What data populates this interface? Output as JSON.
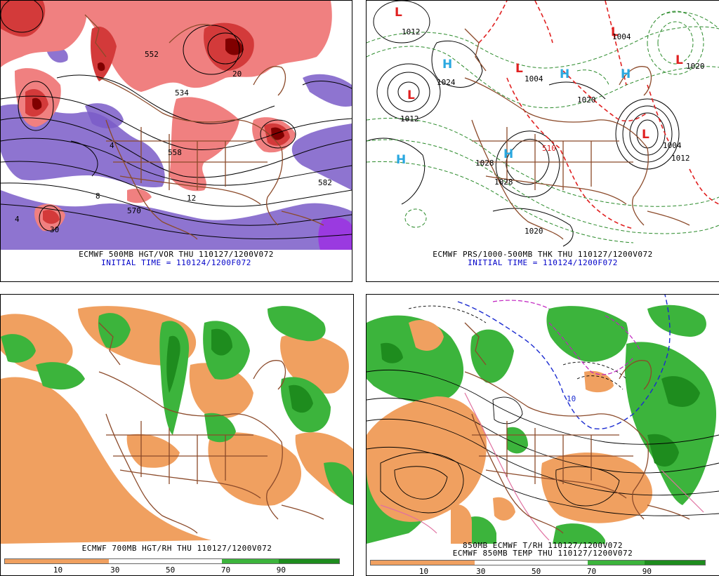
{
  "panels": [
    {
      "id": "tl",
      "caption1": "ECMWF 500MB HGT/VOR THU 110127/1200V072",
      "caption2": "INITIAL TIME = 110124/1200F072",
      "contour_labels": [
        "558",
        "534",
        "552",
        "570",
        "582",
        "12",
        "4",
        "8",
        "4",
        "20",
        "30"
      ]
    },
    {
      "id": "tr",
      "caption1": "ECMWF PRS/1000-500MB THK THU 110127/1200V072",
      "caption2": "INITIAL TIME = 110124/1200F072",
      "contour_labels": [
        "1012",
        "1024",
        "1028",
        "1028",
        "1020",
        "1004",
        "1012",
        "1004",
        "1020",
        "1020",
        "510",
        "1004",
        "1012"
      ],
      "high_symbols": [
        "H",
        "H",
        "H",
        "H",
        "H"
      ],
      "low_symbols": [
        "L",
        "L",
        "L",
        "L",
        "L",
        "L"
      ]
    },
    {
      "id": "bl",
      "caption1": "ECMWF 700MB HGT/RH THU 110127/1200V072"
    },
    {
      "id": "br",
      "caption1": "850MB ECMWF T/RH 110127/1200V072",
      "caption2": "ECMWF 850MB TEMP THU 110127/1200V072",
      "contour_labels": [
        "10"
      ]
    }
  ],
  "colorbars": [
    {
      "ticks": [
        "10",
        "30",
        "50",
        "70",
        "90"
      ]
    },
    {
      "ticks": [
        "10",
        "30",
        "50",
        "70",
        "90"
      ]
    }
  ],
  "colors": {
    "vorticity_red": "#d33a3a",
    "vorticity_light": "#f08080",
    "vorticity_purple": "#7a5cc8",
    "rh_dry": "#f0a060",
    "rh_moist": "#3cb43c",
    "rh_very_moist": "#1e8c1e",
    "thickness_dash": "#e02020",
    "pressure_green": "#2a8a2a",
    "caption_blue": "#0000c8",
    "borders_brown": "#8b4a2a"
  }
}
